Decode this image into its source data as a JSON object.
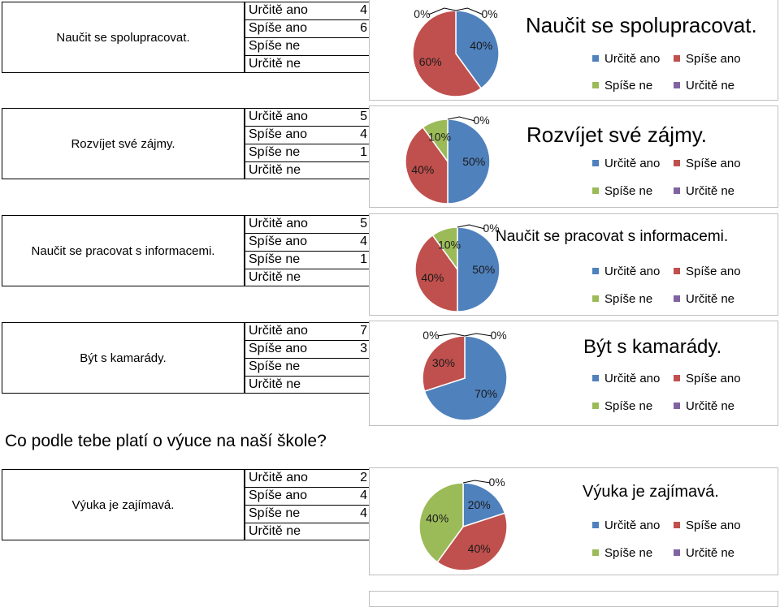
{
  "legend_labels": [
    "Určitě ano",
    "Spíše ano",
    "Spíše ne",
    "Určitě ne"
  ],
  "colors": [
    "#4f81bd",
    "#c0504d",
    "#9bbb59",
    "#8064a2"
  ],
  "section_heading": "Co podle tebe platí o výuce na naší škole?",
  "chart_data": [
    {
      "type": "pie",
      "question": "Naučit se spolupracovat.",
      "title": "Naučit se spolupracovat.",
      "categories": [
        "Určitě ano",
        "Spíše ano",
        "Spíše ne",
        "Určitě ne"
      ],
      "table_values": [
        "4",
        "6",
        "",
        ""
      ],
      "values": [
        4,
        6,
        0,
        0
      ],
      "data_labels": [
        "40%",
        "60%",
        "0%",
        "0%"
      ]
    },
    {
      "type": "pie",
      "question": "Rozvíjet své zájmy.",
      "title": "Rozvíjet své zájmy.",
      "categories": [
        "Určitě ano",
        "Spíše ano",
        "Spíše ne",
        "Určitě ne"
      ],
      "table_values": [
        "5",
        "4",
        "1",
        ""
      ],
      "values": [
        5,
        4,
        1,
        0
      ],
      "data_labels": [
        "50%",
        "40%",
        "10%",
        "0%"
      ]
    },
    {
      "type": "pie",
      "question": "Naučit se pracovat s informacemi.",
      "title": "Naučit se pracovat s informacemi.",
      "categories": [
        "Určitě ano",
        "Spíše ano",
        "Spíše ne",
        "Určitě ne"
      ],
      "table_values": [
        "5",
        "4",
        "1",
        ""
      ],
      "values": [
        5,
        4,
        1,
        0
      ],
      "data_labels": [
        "50%",
        "40%",
        "10%",
        "0%"
      ]
    },
    {
      "type": "pie",
      "question": "Být s kamarády.",
      "title": "Být s kamarády.",
      "categories": [
        "Určitě ano",
        "Spíše ano",
        "Spíše ne",
        "Určitě ne"
      ],
      "table_values": [
        "7",
        "3",
        "",
        ""
      ],
      "values": [
        7,
        3,
        0,
        0
      ],
      "data_labels": [
        "70%",
        "30%",
        "0%",
        "0%"
      ]
    },
    {
      "type": "pie",
      "question": "Výuka je zajímavá.",
      "title": "Výuka je zajímavá.",
      "categories": [
        "Určitě ano",
        "Spíše ano",
        "Spíše ne",
        "Určitě ne"
      ],
      "table_values": [
        "2",
        "4",
        "4",
        ""
      ],
      "values": [
        2,
        4,
        4,
        0
      ],
      "data_labels": [
        "20%",
        "40%",
        "40%",
        "0%"
      ]
    }
  ]
}
